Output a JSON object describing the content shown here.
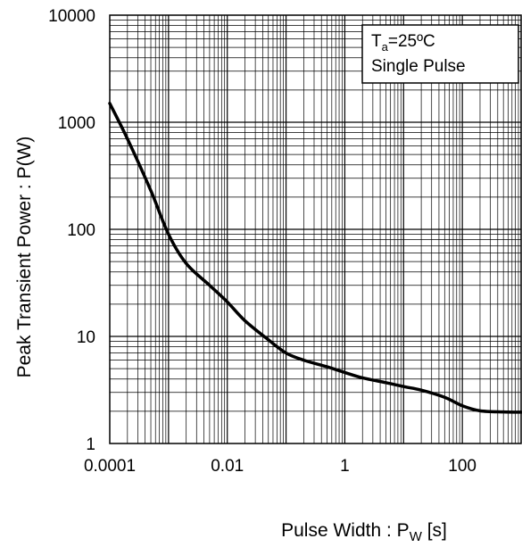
{
  "chart_data": {
    "type": "line",
    "xscale": "log",
    "yscale": "log",
    "xlim": [
      0.0001,
      1000
    ],
    "ylim": [
      1,
      10000
    ],
    "grid": true,
    "xlabel": {
      "main": "Pulse Width : P",
      "sub": "W",
      "unit": " [s]"
    },
    "ylabel": "Peak Transient Power :  P(W)",
    "x_tick_labels": [
      {
        "value": 0.0001,
        "label": "0.0001"
      },
      {
        "value": 0.01,
        "label": "0.01"
      },
      {
        "value": 1,
        "label": "1"
      },
      {
        "value": 100,
        "label": "100"
      }
    ],
    "y_tick_labels": [
      {
        "value": 1,
        "label": "1"
      },
      {
        "value": 10,
        "label": "10"
      },
      {
        "value": 100,
        "label": "100"
      },
      {
        "value": 1000,
        "label": "1000"
      },
      {
        "value": 10000,
        "label": "10000"
      }
    ],
    "legend": {
      "position": "top-right",
      "line1_main": "T",
      "line1_sub": "a",
      "line1_rest": "=25ºC",
      "line2": "Single Pulse"
    },
    "series": [
      {
        "x": [
          0.0001,
          0.0002,
          0.0005,
          0.001,
          0.002,
          0.005,
          0.01,
          0.02,
          0.05,
          0.1,
          0.2,
          0.5,
          1,
          2,
          5,
          10,
          20,
          50,
          100,
          200,
          500,
          1000
        ],
        "y": [
          1500,
          700,
          230,
          90,
          48,
          30,
          21,
          14,
          9.3,
          7.0,
          6.0,
          5.2,
          4.6,
          4.1,
          3.7,
          3.4,
          3.15,
          2.7,
          2.25,
          2.02,
          1.97,
          1.96
        ]
      }
    ]
  }
}
